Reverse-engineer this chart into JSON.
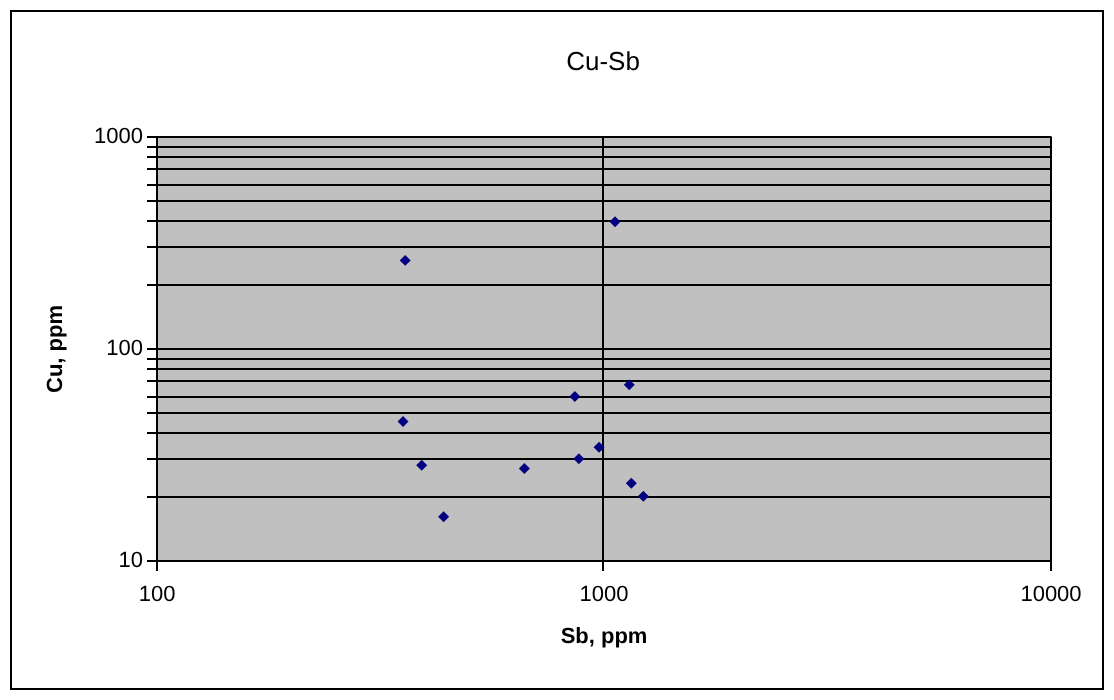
{
  "chart_data": {
    "type": "scatter",
    "title": "Cu-Sb",
    "xlabel": "Sb, ppm",
    "ylabel": "Cu, ppm",
    "x": [
      361,
      1064,
      357,
      393,
      440,
      667,
      865,
      883,
      980,
      1145,
      1157,
      1231
    ],
    "series": [
      {
        "color": "#000080",
        "values": [
          259,
          394,
          45,
          28,
          16,
          27,
          59,
          30,
          34,
          67,
          23,
          20
        ]
      }
    ],
    "log": "xy",
    "xlim": [
      100,
      10000
    ],
    "ylim": [
      10,
      1000
    ],
    "xticks": [
      100,
      1000,
      10000
    ],
    "yticks": [
      10,
      {
        "value": 20,
        "label": null
      },
      {
        "value": 30,
        "label": null
      },
      {
        "value": 40,
        "label": null
      },
      {
        "value": 50,
        "label": null
      },
      {
        "value": 60,
        "label": null
      },
      {
        "value": 70,
        "label": null
      },
      {
        "value": 80,
        "label": null
      },
      {
        "value": 90,
        "label": null
      },
      100,
      {
        "value": 200,
        "label": null
      },
      {
        "value": 300,
        "label": null
      },
      {
        "value": 400,
        "label": null
      },
      {
        "value": 500,
        "label": null
      },
      {
        "value": 600,
        "label": null
      },
      {
        "value": 700,
        "label": null
      },
      {
        "value": 800,
        "label": null
      },
      {
        "value": 900,
        "label": null
      },
      1000
    ],
    "grid": true,
    "marker": "diamond",
    "legend": false
  }
}
